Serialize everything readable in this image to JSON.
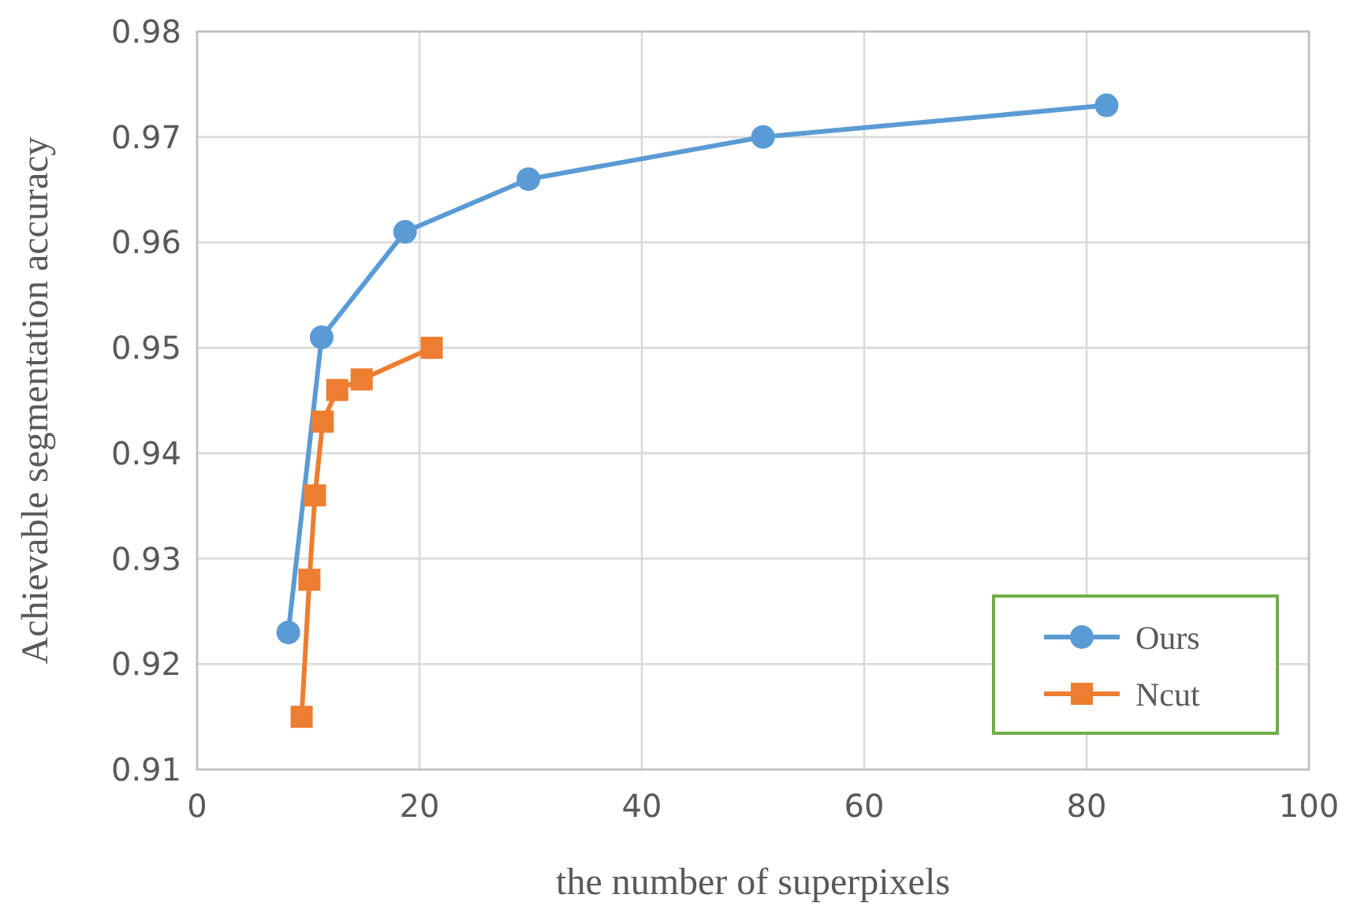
{
  "chart_data": {
    "type": "line",
    "xlabel": "the number of superpixels",
    "ylabel": "Achievable segmentation accuracy",
    "xlim": [
      0,
      100
    ],
    "xticks": [
      0,
      20,
      40,
      60,
      80,
      100
    ],
    "ylim": [
      0.91,
      0.98
    ],
    "yticks": [
      0.91,
      0.92,
      0.93,
      0.94,
      0.95,
      0.96,
      0.97,
      0.98
    ],
    "grid": true,
    "legend": "bottom right",
    "line_style": "solid",
    "series": [
      {
        "name": "Ours",
        "color": "#5b9bd5",
        "marker": "circle",
        "x": [
          8.2,
          11.2,
          18.7,
          29.8,
          50.9,
          81.8
        ],
        "values": [
          0.923,
          0.951,
          0.961,
          0.966,
          0.97,
          0.973
        ]
      },
      {
        "name": "Ncut",
        "color": "#ed7d31",
        "marker": "square",
        "x": [
          9.4,
          10.1,
          10.6,
          11.3,
          12.6,
          14.8,
          21.1
        ],
        "values": [
          0.915,
          0.928,
          0.936,
          0.943,
          0.946,
          0.947,
          0.95
        ]
      }
    ]
  }
}
